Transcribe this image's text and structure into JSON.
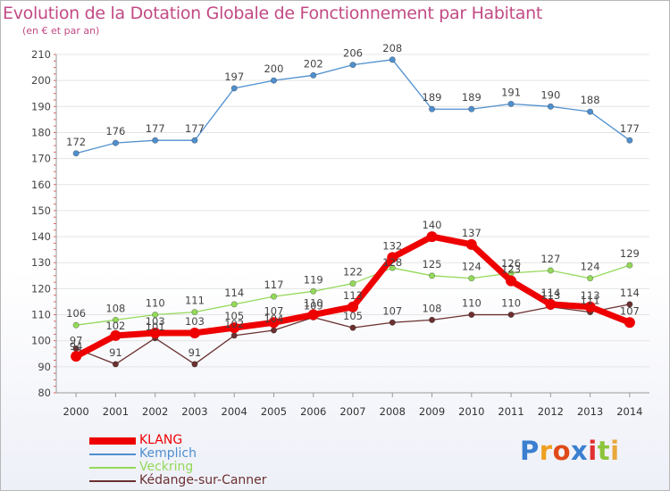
{
  "header": {
    "title": "Evolution de la Dotation Globale de Fonctionnement par Habitant",
    "subtitle": "(en € et par an)"
  },
  "chart_data": {
    "type": "line",
    "title": "Evolution de la Dotation Globale de Fonctionnement par Habitant",
    "subtitle": "(en € et par an)",
    "x": [
      2000,
      2001,
      2002,
      2003,
      2004,
      2005,
      2006,
      2007,
      2008,
      2009,
      2010,
      2011,
      2012,
      2013,
      2014
    ],
    "ylim": [
      80,
      210
    ],
    "yticks": [
      80,
      90,
      100,
      110,
      120,
      130,
      140,
      150,
      160,
      170,
      180,
      190,
      200,
      210
    ],
    "grid": "horizontal",
    "legend_position": "bottom-left",
    "series": [
      {
        "name": "KLANG",
        "color": "#ee0000",
        "style": "bold",
        "values": [
          94,
          102,
          103,
          103,
          105,
          107,
          110,
          113,
          132,
          140,
          137,
          123,
          114,
          113,
          107
        ],
        "labels": [
          "94",
          "102",
          "103",
          "103",
          "105",
          "107",
          "110",
          "113",
          "132",
          "140",
          "137",
          "123",
          "114",
          "113",
          "107"
        ]
      },
      {
        "name": "Kemplich",
        "color": "#4f8fce",
        "style": "thin",
        "values": [
          172,
          176,
          177,
          177,
          197,
          200,
          202,
          206,
          208,
          189,
          189,
          191,
          190,
          188,
          177
        ],
        "labels": [
          "172",
          "176",
          "177",
          "177",
          "197",
          "200",
          "202",
          "206",
          "208",
          "189",
          "189",
          "191",
          "190",
          "188",
          "177"
        ]
      },
      {
        "name": "Veckring",
        "color": "#94d95a",
        "style": "thin",
        "values": [
          106,
          108,
          110,
          111,
          114,
          117,
          119,
          122,
          128,
          125,
          124,
          126,
          127,
          124,
          129
        ],
        "labels": [
          "106",
          "108",
          "110",
          "111",
          "114",
          "117",
          "119",
          "122",
          "128",
          "125",
          "124",
          "126",
          "127",
          "124",
          "129"
        ]
      },
      {
        "name": "Kédange-sur-Canner",
        "color": "#6b3030",
        "style": "thin",
        "values": [
          97,
          91,
          101,
          91,
          102,
          104,
          109,
          105,
          107,
          108,
          110,
          110,
          113,
          111,
          114
        ],
        "labels": [
          "97",
          "91",
          "101",
          "91",
          "102",
          "104",
          "109",
          "105",
          "107",
          "108",
          "110",
          "110",
          "113",
          "111",
          "114"
        ]
      }
    ]
  },
  "logo": {
    "text": "Proxiti"
  }
}
